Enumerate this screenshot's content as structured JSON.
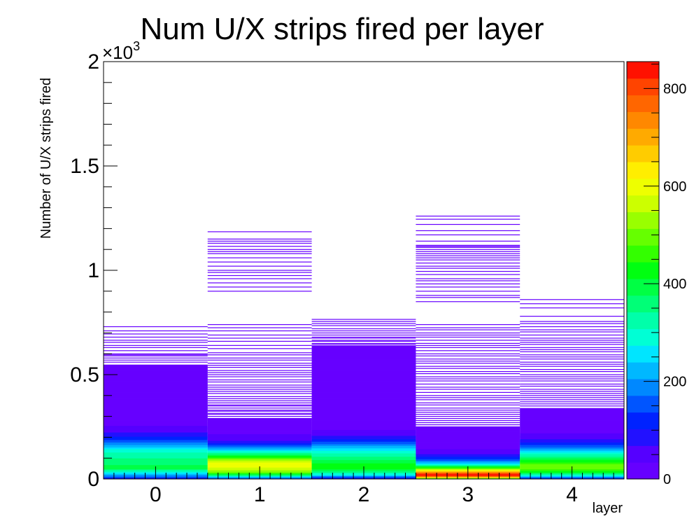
{
  "chart_data": {
    "type": "heatmap",
    "title": "Num U/X strips fired per layer",
    "xlabel": "layer",
    "ylabel": "Number of U/X strips fired",
    "x_categories": [
      "0",
      "1",
      "2",
      "3",
      "4"
    ],
    "x_range": [
      -0.5,
      4.5
    ],
    "y_range": [
      0,
      2000
    ],
    "y_ticks": [
      {
        "value": 0,
        "label": "0"
      },
      {
        "value": 500,
        "label": "0.5"
      },
      {
        "value": 1000,
        "label": "1"
      },
      {
        "value": 1500,
        "label": "1.5"
      },
      {
        "value": 2000,
        "label": "2"
      }
    ],
    "y_exponent_label": "×10",
    "y_exponent_power": "3",
    "colorbar": {
      "min": 0,
      "max": 855,
      "ticks": [
        0,
        200,
        400,
        600,
        800
      ],
      "palette": [
        "#6600ff",
        "#5500ff",
        "#2211ff",
        "#0022ff",
        "#0055ff",
        "#0088ff",
        "#00b8ff",
        "#00e5ff",
        "#00ffd5",
        "#00ffaa",
        "#00ff77",
        "#00ff44",
        "#00ff11",
        "#33ff00",
        "#66ff00",
        "#99ff00",
        "#ccff00",
        "#eeff00",
        "#ffee00",
        "#ffcc00",
        "#ffaa00",
        "#ff8800",
        "#ff6600",
        "#ff4400",
        "#ff1100"
      ]
    },
    "columns": [
      {
        "layer": "0",
        "solid_max": 545,
        "profile": [
          [
            0,
            60
          ],
          [
            12,
            160
          ],
          [
            20,
            220
          ],
          [
            30,
            270
          ],
          [
            40,
            320
          ],
          [
            50,
            380
          ],
          [
            60,
            400
          ],
          [
            70,
            370
          ],
          [
            80,
            360
          ],
          [
            90,
            360
          ],
          [
            100,
            340
          ],
          [
            110,
            330
          ],
          [
            120,
            330
          ],
          [
            130,
            300
          ],
          [
            140,
            280
          ],
          [
            150,
            250
          ],
          [
            160,
            220
          ],
          [
            170,
            190
          ],
          [
            180,
            160
          ],
          [
            190,
            130
          ],
          [
            200,
            110
          ],
          [
            215,
            80
          ],
          [
            230,
            60
          ],
          [
            245,
            45
          ],
          [
            260,
            32
          ],
          [
            280,
            22
          ],
          [
            300,
            16
          ],
          [
            330,
            12
          ],
          [
            360,
            9
          ],
          [
            400,
            6
          ],
          [
            450,
            4
          ],
          [
            500,
            2
          ],
          [
            545,
            1
          ]
        ],
        "sparse_bins": [
          560,
          570,
          580,
          590,
          595,
          600,
          615,
          630,
          640,
          655,
          665,
          680,
          695,
          710,
          730
        ]
      },
      {
        "layer": "1",
        "solid_max": 290,
        "profile": [
          [
            0,
            120
          ],
          [
            12,
            250
          ],
          [
            20,
            380
          ],
          [
            30,
            480
          ],
          [
            40,
            540
          ],
          [
            50,
            560
          ],
          [
            60,
            600
          ],
          [
            70,
            610
          ],
          [
            80,
            580
          ],
          [
            90,
            540
          ],
          [
            100,
            480
          ],
          [
            110,
            420
          ],
          [
            120,
            360
          ],
          [
            130,
            300
          ],
          [
            140,
            240
          ],
          [
            150,
            190
          ],
          [
            160,
            150
          ],
          [
            170,
            110
          ],
          [
            180,
            80
          ],
          [
            190,
            60
          ],
          [
            200,
            45
          ],
          [
            220,
            30
          ],
          [
            240,
            18
          ],
          [
            260,
            10
          ],
          [
            290,
            4
          ]
        ],
        "sparse_bins": [
          300,
          310,
          315,
          325,
          330,
          340,
          350,
          355,
          365,
          375,
          385,
          395,
          410,
          420,
          430,
          440,
          450,
          465,
          475,
          490,
          500,
          510,
          520,
          535,
          545,
          555,
          570,
          580,
          595,
          605,
          625,
          640,
          660,
          675,
          690,
          710,
          725,
          740,
          900,
          920,
          940,
          960,
          975,
          990,
          1000,
          1020,
          1040,
          1060,
          1080,
          1090,
          1100,
          1115,
          1130,
          1140,
          1150,
          1185
        ]
      },
      {
        "layer": "2",
        "solid_max": 640,
        "profile": [
          [
            0,
            80
          ],
          [
            12,
            180
          ],
          [
            20,
            260
          ],
          [
            30,
            330
          ],
          [
            40,
            380
          ],
          [
            50,
            420
          ],
          [
            60,
            430
          ],
          [
            70,
            420
          ],
          [
            80,
            400
          ],
          [
            90,
            380
          ],
          [
            100,
            360
          ],
          [
            110,
            340
          ],
          [
            120,
            320
          ],
          [
            130,
            290
          ],
          [
            140,
            260
          ],
          [
            150,
            230
          ],
          [
            160,
            200
          ],
          [
            170,
            170
          ],
          [
            180,
            140
          ],
          [
            190,
            110
          ],
          [
            200,
            80
          ],
          [
            220,
            50
          ],
          [
            240,
            30
          ],
          [
            260,
            20
          ],
          [
            300,
            12
          ],
          [
            350,
            8
          ],
          [
            400,
            6
          ],
          [
            450,
            4
          ],
          [
            500,
            3
          ],
          [
            560,
            2
          ],
          [
            640,
            1
          ]
        ],
        "sparse_bins": [
          645,
          650,
          660,
          665,
          675,
          680,
          690,
          700,
          710,
          720,
          735,
          745,
          755,
          765
        ]
      },
      {
        "layer": "3",
        "solid_max": 250,
        "profile": [
          [
            0,
            380
          ],
          [
            8,
            640
          ],
          [
            15,
            800
          ],
          [
            22,
            855
          ],
          [
            30,
            780
          ],
          [
            40,
            620
          ],
          [
            50,
            500
          ],
          [
            60,
            400
          ],
          [
            70,
            300
          ],
          [
            80,
            220
          ],
          [
            90,
            160
          ],
          [
            100,
            120
          ],
          [
            115,
            80
          ],
          [
            130,
            50
          ],
          [
            150,
            30
          ],
          [
            170,
            18
          ],
          [
            200,
            10
          ],
          [
            230,
            5
          ],
          [
            250,
            3
          ]
        ],
        "sparse_bins": [
          260,
          270,
          280,
          290,
          300,
          310,
          320,
          330,
          340,
          355,
          365,
          380,
          390,
          400,
          415,
          430,
          440,
          455,
          470,
          480,
          490,
          505,
          515,
          530,
          540,
          555,
          565,
          575,
          590,
          600,
          615,
          630,
          640,
          650,
          665,
          680,
          690,
          700,
          715,
          725,
          740,
          850,
          870,
          880,
          900,
          920,
          935,
          950,
          960,
          980,
          995,
          1010,
          1020,
          1035,
          1050,
          1060,
          1070,
          1080,
          1090,
          1100,
          1110,
          1115,
          1120,
          1140,
          1170,
          1190,
          1220,
          1245,
          1260
        ]
      },
      {
        "layer": "4",
        "solid_max": 340,
        "profile": [
          [
            0,
            100
          ],
          [
            12,
            220
          ],
          [
            20,
            320
          ],
          [
            30,
            400
          ],
          [
            40,
            450
          ],
          [
            50,
            480
          ],
          [
            60,
            500
          ],
          [
            70,
            480
          ],
          [
            80,
            450
          ],
          [
            90,
            420
          ],
          [
            100,
            380
          ],
          [
            110,
            340
          ],
          [
            120,
            300
          ],
          [
            130,
            260
          ],
          [
            140,
            220
          ],
          [
            150,
            180
          ],
          [
            160,
            150
          ],
          [
            170,
            120
          ],
          [
            180,
            90
          ],
          [
            190,
            70
          ],
          [
            200,
            55
          ],
          [
            220,
            35
          ],
          [
            240,
            22
          ],
          [
            260,
            14
          ],
          [
            290,
            8
          ],
          [
            320,
            4
          ],
          [
            340,
            2
          ]
        ],
        "sparse_bins": [
          350,
          360,
          370,
          380,
          390,
          400,
          410,
          420,
          430,
          445,
          455,
          470,
          480,
          490,
          500,
          515,
          525,
          540,
          550,
          560,
          575,
          585,
          595,
          610,
          620,
          630,
          645,
          655,
          665,
          675,
          690,
          705,
          715,
          730,
          745,
          755,
          780,
          820,
          840,
          860
        ]
      }
    ]
  }
}
